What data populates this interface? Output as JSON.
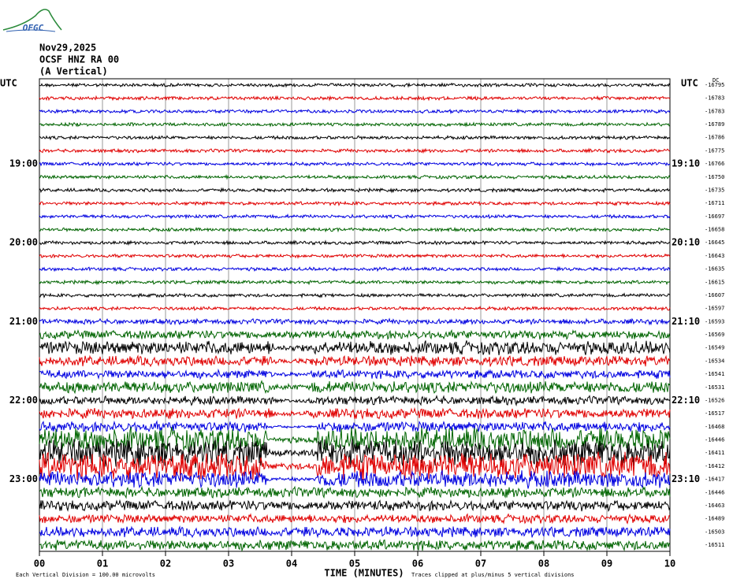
{
  "header": {
    "logo": "OFGC",
    "date": "Nov29,2025",
    "station": "OCSF HNZ RA 00",
    "component": "(A Vertical)"
  },
  "left_axis": {
    "title": "UTC",
    "labels": [
      "19:00",
      "20:00",
      "21:00",
      "22:00",
      "23:00"
    ]
  },
  "right_axis": {
    "title": "UTC",
    "labels": [
      "19:10",
      "20:10",
      "21:10",
      "22:10",
      "23:10"
    ],
    "offset_title": "DC",
    "offsets": [
      -16795,
      -16783,
      -16783,
      -16789,
      -16786,
      -16775,
      -16766,
      -16750,
      -16735,
      -16711,
      -16697,
      -16658,
      -16645,
      -16643,
      -16635,
      -16615,
      -16607,
      -16597,
      -16593,
      -16569,
      -16549,
      -16534,
      -16541,
      -16531,
      -16526,
      -16517,
      -16468,
      -16446,
      -16411,
      -16412,
      -16417,
      -16446,
      -16463,
      -16489,
      -16503,
      -16511
    ]
  },
  "x_axis": {
    "title": "TIME (MINUTES)",
    "ticks": [
      {
        "value": 0,
        "label": "00"
      },
      {
        "value": 1,
        "label": "01"
      },
      {
        "value": 2,
        "label": "02"
      },
      {
        "value": 3,
        "label": "03"
      },
      {
        "value": 4,
        "label": "04"
      },
      {
        "value": 5,
        "label": "05"
      },
      {
        "value": 6,
        "label": "06"
      },
      {
        "value": 7,
        "label": "07"
      },
      {
        "value": 8,
        "label": "08"
      },
      {
        "value": 9,
        "label": "09"
      },
      {
        "value": 10,
        "label": "10"
      }
    ]
  },
  "footer": {
    "scale": "Each Vertical Division =  100.00 microvolts",
    "clip": "Traces clipped at plus/minus 5 vertical divisions"
  },
  "trace_colors": [
    "#000000",
    "#e00000",
    "#0000e0",
    "#006400"
  ]
}
